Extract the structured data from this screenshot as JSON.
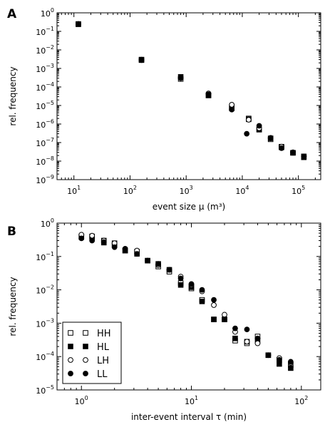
{
  "chart_data": [
    {
      "type": "scatter",
      "panel_label": "A",
      "xlabel": "event size μ (m³)",
      "ylabel": "rel. frequency",
      "xscale": "log",
      "yscale": "log",
      "xlim": [
        5,
        250000
      ],
      "ylim": [
        1e-09,
        1
      ],
      "x_ticks": [
        {
          "base": "10",
          "exp": "1"
        },
        {
          "base": "10",
          "exp": "2"
        },
        {
          "base": "10",
          "exp": "3"
        },
        {
          "base": "10",
          "exp": "4"
        },
        {
          "base": "10",
          "exp": "5"
        }
      ],
      "y_ticks": [
        {
          "base": "10",
          "exp": "0"
        },
        {
          "base": "10",
          "exp": "−1"
        },
        {
          "base": "10",
          "exp": "−2"
        },
        {
          "base": "10",
          "exp": "−3"
        },
        {
          "base": "10",
          "exp": "−4"
        },
        {
          "base": "10",
          "exp": "−5"
        },
        {
          "base": "10",
          "exp": "−6"
        },
        {
          "base": "10",
          "exp": "−7"
        },
        {
          "base": "10",
          "exp": "−8"
        },
        {
          "base": "10",
          "exp": "−9"
        }
      ],
      "grid": false,
      "series": [
        {
          "name": "HH",
          "marker": "square-open",
          "x": [
            12,
            160,
            800,
            2500,
            6500,
            13000,
            20000,
            32000,
            50000,
            80000,
            125000
          ],
          "y": [
            0.25,
            0.003,
            0.00027,
            3.5e-05,
            8e-06,
            2e-06,
            5e-07,
            1.5e-07,
            6e-08,
            2.8e-08,
            1.8e-08
          ]
        },
        {
          "name": "HL",
          "marker": "square-filled",
          "x": [
            12,
            160,
            800,
            2500,
            6500,
            13000,
            20000,
            32000,
            50000,
            80000,
            125000
          ],
          "y": [
            0.24,
            0.0028,
            0.00035,
            3.5e-05,
            7e-06,
            1.8e-06,
            5e-07,
            1.7e-07,
            5.5e-08,
            2.8e-08,
            1.6e-08
          ]
        },
        {
          "name": "LH",
          "marker": "circle-open",
          "x": [
            12,
            160,
            800,
            2500,
            6500,
            13000,
            20000,
            32000,
            50000,
            80000,
            125000
          ],
          "y": [
            0.25,
            0.003,
            0.0003,
            4.5e-05,
            1.1e-05,
            1.7e-06,
            6e-07,
            1.8e-07,
            6e-08,
            2.8e-08,
            1.8e-08
          ]
        },
        {
          "name": "LL",
          "marker": "circle-filled",
          "x": [
            12,
            160,
            800,
            2500,
            6500,
            12000,
            20000,
            32000,
            50000,
            80000,
            125000
          ],
          "y": [
            0.25,
            0.0028,
            0.00033,
            4e-05,
            6e-06,
            3e-07,
            8e-07,
            1.7e-07,
            5e-08,
            3e-08,
            1.8e-08
          ]
        }
      ]
    },
    {
      "type": "scatter",
      "panel_label": "B",
      "xlabel": "inter-event interval τ (min)",
      "ylabel": "rel. frequency",
      "xscale": "log",
      "yscale": "log",
      "xlim": [
        0.6,
        150
      ],
      "ylim": [
        1e-05,
        1
      ],
      "x_ticks": [
        {
          "base": "10",
          "exp": "0"
        },
        {
          "base": "10",
          "exp": "1"
        },
        {
          "base": "10",
          "exp": "2"
        }
      ],
      "y_ticks": [
        {
          "base": "10",
          "exp": "0"
        },
        {
          "base": "10",
          "exp": "−1"
        },
        {
          "base": "10",
          "exp": "−2"
        },
        {
          "base": "10",
          "exp": "−3"
        },
        {
          "base": "10",
          "exp": "−4"
        },
        {
          "base": "10",
          "exp": "−5"
        }
      ],
      "grid": false,
      "legend": {
        "placement": "lower-left",
        "entries": [
          "HH",
          "HL",
          "LH",
          "LL"
        ]
      },
      "series": [
        {
          "name": "HH",
          "marker": "square-open",
          "x": [
            1,
            1.25,
            1.6,
            2,
            2.5,
            3.2,
            4,
            5,
            6.3,
            8,
            10,
            12.5,
            16,
            20,
            25,
            32,
            40,
            50,
            63,
            80
          ],
          "y": [
            0.4,
            0.4,
            0.3,
            0.25,
            0.15,
            0.14,
            0.075,
            0.05,
            0.035,
            0.016,
            0.011,
            0.005,
            0.0013,
            0.0013,
            0.0003,
            0.00025,
            0.0004,
            0.00011,
            8e-05,
            5.5e-05
          ]
        },
        {
          "name": "HL",
          "marker": "square-filled",
          "x": [
            1,
            1.25,
            1.6,
            2,
            2.5,
            3.2,
            4,
            5,
            6.3,
            8,
            10,
            12.5,
            16,
            20,
            25,
            32,
            40,
            50,
            63,
            80
          ],
          "y": [
            0.38,
            0.38,
            0.26,
            0.22,
            0.15,
            0.12,
            0.075,
            0.06,
            0.04,
            0.014,
            0.012,
            0.0045,
            0.0013,
            0.0013,
            0.00035,
            0.00028,
            0.0003,
            0.00011,
            6e-05,
            4.5e-05
          ]
        },
        {
          "name": "LH",
          "marker": "circle-open",
          "x": [
            1,
            1.25,
            1.6,
            2,
            2.5,
            3.2,
            4,
            5,
            6.3,
            8,
            10,
            12.5,
            16,
            20,
            25,
            32,
            40,
            50,
            63,
            80
          ],
          "y": [
            0.45,
            0.42,
            0.3,
            0.25,
            0.17,
            0.15,
            0.075,
            0.055,
            0.04,
            0.025,
            0.014,
            0.009,
            0.0035,
            0.0018,
            0.00055,
            0.00028,
            0.00025,
            0.00011,
            9e-05,
            6.5e-05
          ]
        },
        {
          "name": "LL",
          "marker": "circle-filled",
          "x": [
            1,
            1.25,
            1.6,
            2,
            2.5,
            3.2,
            4,
            5,
            6.3,
            8,
            10,
            12.5,
            16,
            20,
            25,
            32,
            40,
            50,
            63,
            80
          ],
          "y": [
            0.35,
            0.3,
            0.27,
            0.19,
            0.17,
            0.12,
            0.075,
            0.06,
            0.04,
            0.022,
            0.015,
            0.01,
            0.005,
            0.0013,
            0.0007,
            0.00065,
            0.00035,
            0.00011,
            8e-05,
            7e-05
          ]
        }
      ]
    }
  ]
}
